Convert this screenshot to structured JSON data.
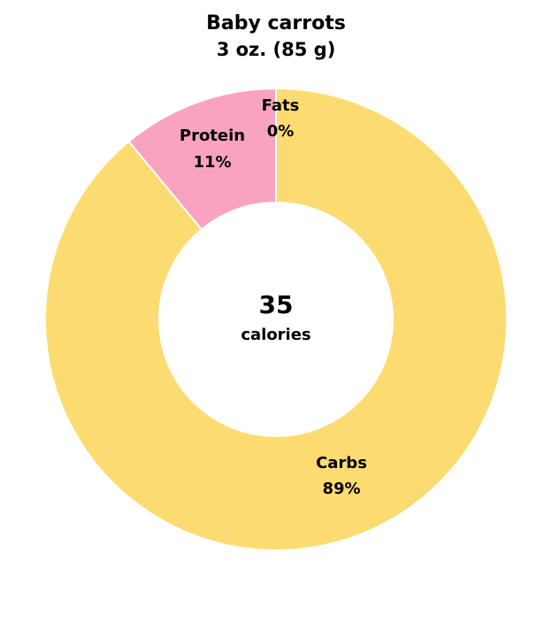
{
  "chart_data": {
    "type": "pie",
    "title": "Baby carrots",
    "subtitle": "3 oz. (85 g)",
    "center_value": "35",
    "center_unit": "calories",
    "slices": [
      {
        "name": "Fats",
        "value": 0,
        "label": "0%",
        "color": "#fbd06a"
      },
      {
        "name": "Carbs",
        "value": 89,
        "label": "89%",
        "color": "#fcdc70"
      },
      {
        "name": "Protein",
        "value": 11,
        "label": "11%",
        "color": "#f9a3c1"
      }
    ]
  }
}
